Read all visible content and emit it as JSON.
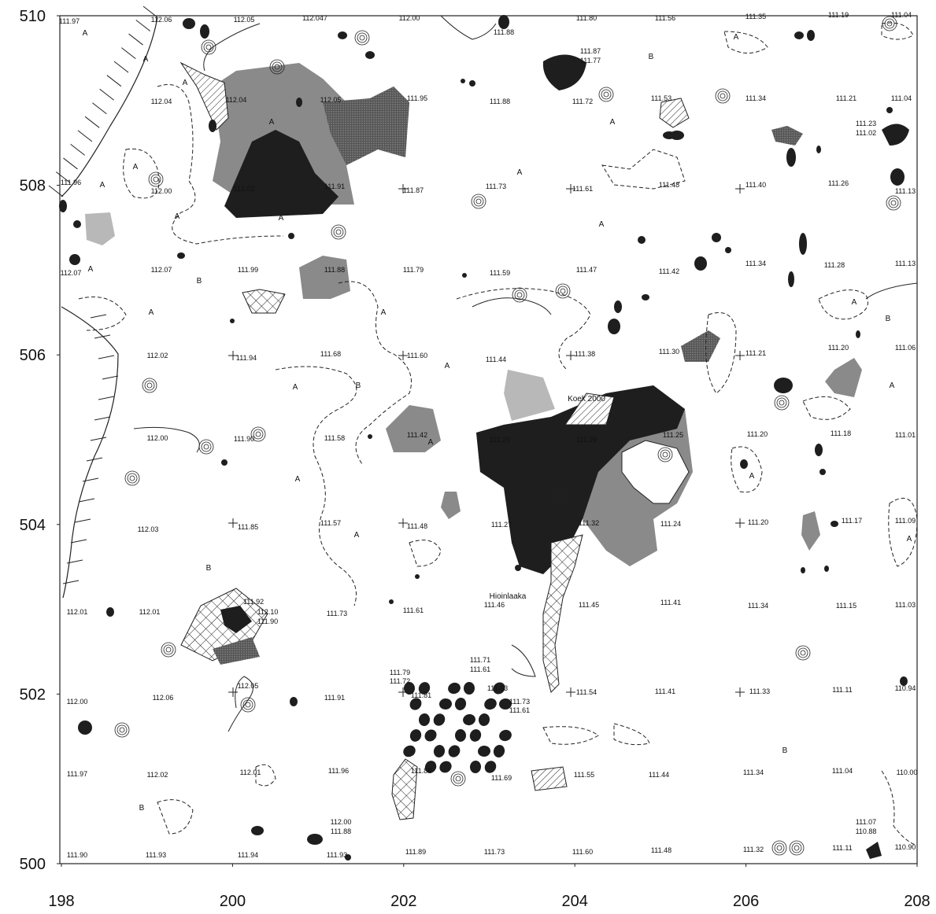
{
  "axes": {
    "x_ticks": [
      198,
      200,
      202,
      204,
      206,
      208
    ],
    "y_ticks": [
      500,
      502,
      504,
      506,
      508,
      510
    ]
  },
  "spot_heights": [
    "111.97",
    "112.06",
    "112.05",
    "112.047",
    "112.00",
    "111.88",
    "111.80",
    "111.56",
    "111.35",
    "111.19",
    "111.04",
    "111.87",
    "111.77",
    "112.04",
    "112.04",
    "112.05",
    "111.95",
    "111.88",
    "111.72",
    "111.53",
    "111.34",
    "111.21",
    "111.04",
    "111.23",
    "111.02",
    "111.96",
    "112.00",
    "112.02",
    "111.91",
    "111.87",
    "111.73",
    "111.61",
    "111.48",
    "111.40",
    "111.26",
    "111.13",
    "112.07",
    "112.07",
    "111.99",
    "111.88",
    "111.79",
    "111.59",
    "111.47",
    "111.42",
    "111.34",
    "111.28",
    "111.13",
    "112.02",
    "111.94",
    "111.68",
    "111.60",
    "111.44",
    "111.38",
    "111.30",
    "111.21",
    "111.20",
    "111.06",
    "112.00",
    "111.90",
    "111.58",
    "111.42",
    "111.29",
    "111.29",
    "111.25",
    "111.20",
    "111.18",
    "111.01",
    "112.03",
    "111.85",
    "111.57",
    "111.48",
    "111.27",
    "111.32",
    "111.24",
    "111.20",
    "111.17",
    "111.09",
    "112.01",
    "112.01",
    "111.92",
    "112.10",
    "111.90",
    "111.73",
    "111.61",
    "111.46",
    "111.45",
    "111.41",
    "111.34",
    "111.15",
    "111.03",
    "112.00",
    "112.06",
    "112.05",
    "111.91",
    "111.79",
    "111.72",
    "111.81",
    "111.71",
    "111.61",
    "111.63",
    "111.73",
    "111.61",
    "111.54",
    "111.41",
    "111.33",
    "111.11",
    "110.94",
    "111.97",
    "112.02",
    "112.01",
    "111.96",
    "111.88",
    "111.69",
    "111.55",
    "111.44",
    "111.34",
    "111.04",
    "110.00",
    "112.00",
    "111.88",
    "111.07",
    "110.88",
    "111.90",
    "111.93",
    "111.94",
    "111.93",
    "111.89",
    "111.73",
    "111.60",
    "111.48",
    "111.32",
    "111.11",
    "110.90"
  ],
  "place_names": [
    "Koek 2000",
    "Hioinlaaka"
  ],
  "area_codes": [
    "A",
    "A",
    "A",
    "A",
    "A",
    "A",
    "A",
    "A",
    "A",
    "A",
    "A",
    "A",
    "A",
    "A",
    "A",
    "A",
    "A",
    "A",
    "A",
    "A",
    "A",
    "A",
    "A",
    "A",
    "B",
    "B",
    "B",
    "B",
    "B",
    "B",
    "B"
  ]
}
